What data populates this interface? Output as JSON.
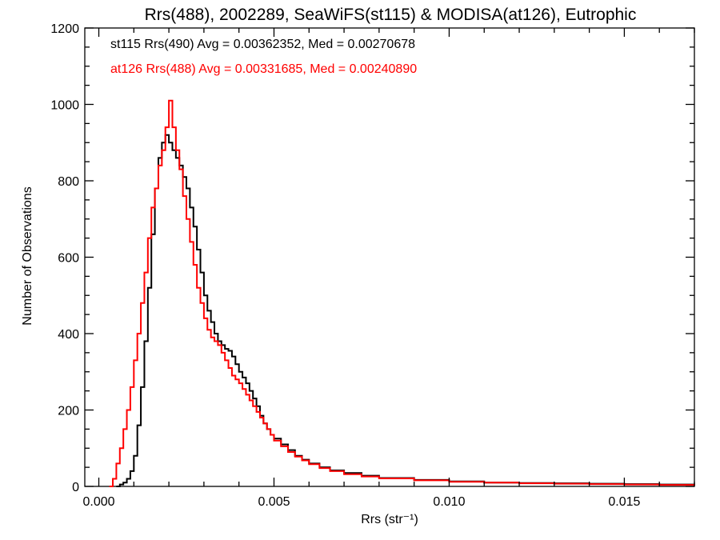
{
  "chart_data": {
    "type": "line",
    "title": "Rrs(488), 2002289, SeaWiFS(st115) & MODISA(at126), Eutrophic",
    "xlabel": "Rrs (str⁻¹)",
    "ylabel": "Number of Observations",
    "xlim": [
      -0.0004,
      0.017
    ],
    "ylim": [
      0,
      1200
    ],
    "xticks": [
      0.0,
      0.005,
      0.01,
      0.015
    ],
    "xtick_labels": [
      "0.000",
      "0.005",
      "0.010",
      "0.015"
    ],
    "yticks": [
      0,
      200,
      400,
      600,
      800,
      1000,
      1200
    ],
    "ytick_labels": [
      "0",
      "200",
      "400",
      "600",
      "800",
      "1000",
      "1200"
    ],
    "grid": false,
    "legend_position": "top-left",
    "series": [
      {
        "name": "st115 Rrs(490) Avg = 0.00362352, Med = 0.00270678",
        "color": "#000000",
        "style": "step",
        "x": [
          0.0005,
          0.0006,
          0.0007,
          0.0008,
          0.0009,
          0.001,
          0.0011,
          0.0012,
          0.0013,
          0.0014,
          0.0015,
          0.0016,
          0.0017,
          0.0018,
          0.0019,
          0.002,
          0.0021,
          0.0022,
          0.0023,
          0.0024,
          0.0025,
          0.0026,
          0.0027,
          0.0028,
          0.0029,
          0.003,
          0.0031,
          0.0032,
          0.0033,
          0.0034,
          0.0035,
          0.0036,
          0.0037,
          0.0038,
          0.0039,
          0.004,
          0.0041,
          0.0042,
          0.0043,
          0.0044,
          0.0045,
          0.0046,
          0.0047,
          0.0048,
          0.0049,
          0.005,
          0.0052,
          0.0054,
          0.0056,
          0.0058,
          0.006,
          0.0063,
          0.0066,
          0.007,
          0.0075,
          0.008,
          0.009,
          0.01,
          0.011,
          0.012,
          0.013,
          0.014,
          0.015,
          0.016,
          0.017
        ],
        "values": [
          0,
          5,
          10,
          20,
          40,
          80,
          160,
          260,
          380,
          520,
          660,
          780,
          860,
          900,
          920,
          900,
          880,
          860,
          840,
          810,
          780,
          730,
          680,
          620,
          560,
          500,
          460,
          430,
          400,
          380,
          370,
          360,
          355,
          340,
          320,
          300,
          285,
          270,
          250,
          230,
          210,
          185,
          165,
          150,
          135,
          125,
          110,
          95,
          80,
          70,
          60,
          50,
          42,
          35,
          28,
          22,
          17,
          13,
          10,
          9,
          8,
          7,
          6,
          5,
          4
        ]
      },
      {
        "name": "at126 Rrs(488) Avg = 0.00331685, Med = 0.00240890",
        "color": "#ff0000",
        "style": "step",
        "x": [
          0.0003,
          0.0004,
          0.0005,
          0.0006,
          0.0007,
          0.0008,
          0.0009,
          0.001,
          0.0011,
          0.0012,
          0.0013,
          0.0014,
          0.0015,
          0.0016,
          0.0017,
          0.0018,
          0.0019,
          0.002,
          0.0021,
          0.0022,
          0.0023,
          0.0024,
          0.0025,
          0.0026,
          0.0027,
          0.0028,
          0.0029,
          0.003,
          0.0031,
          0.0032,
          0.0033,
          0.0034,
          0.0035,
          0.0036,
          0.0037,
          0.0038,
          0.0039,
          0.004,
          0.0041,
          0.0042,
          0.0043,
          0.0044,
          0.0045,
          0.0046,
          0.0047,
          0.0048,
          0.0049,
          0.005,
          0.0052,
          0.0054,
          0.0056,
          0.0058,
          0.006,
          0.0063,
          0.0066,
          0.007,
          0.0075,
          0.008,
          0.009,
          0.01,
          0.011,
          0.012,
          0.013,
          0.014,
          0.015,
          0.016,
          0.017
        ],
        "values": [
          0,
          20,
          60,
          100,
          150,
          200,
          260,
          330,
          400,
          480,
          560,
          650,
          730,
          780,
          840,
          880,
          940,
          1010,
          940,
          880,
          830,
          760,
          700,
          640,
          580,
          520,
          480,
          440,
          410,
          390,
          380,
          370,
          350,
          330,
          310,
          290,
          280,
          270,
          255,
          240,
          225,
          210,
          195,
          180,
          165,
          150,
          135,
          120,
          105,
          90,
          78,
          68,
          58,
          48,
          40,
          32,
          26,
          21,
          16,
          12,
          10,
          8,
          7,
          6,
          5,
          4,
          3
        ]
      }
    ]
  }
}
